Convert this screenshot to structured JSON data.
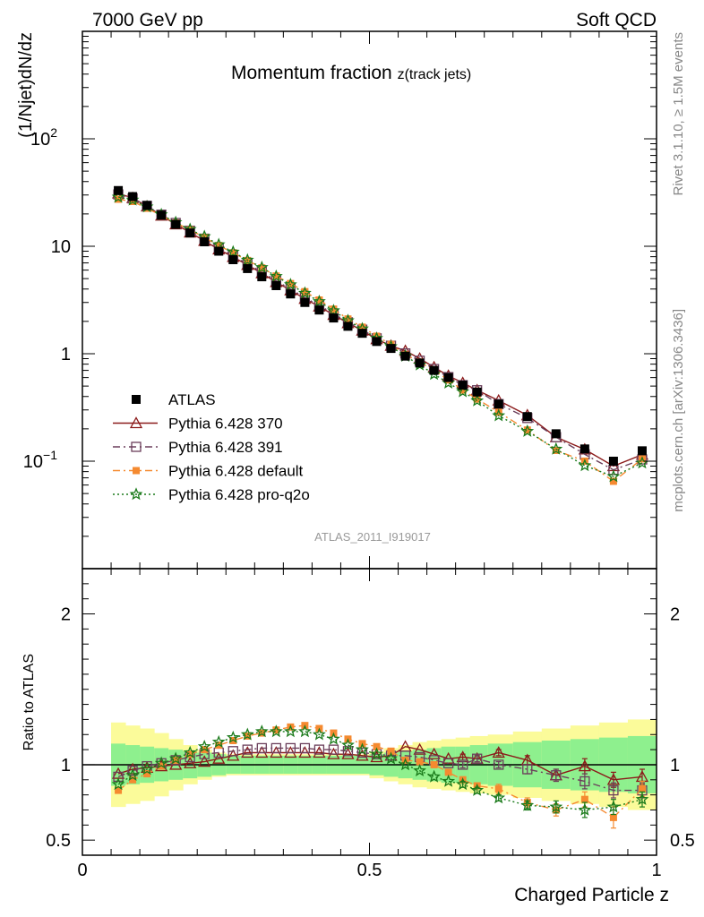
{
  "header": {
    "left": "7000 GeV pp",
    "right": "Soft QCD"
  },
  "side": {
    "rivet": "Rivet 3.1.10, ≥ 1.5M events",
    "site": "mcplots.cern.ch [arXiv:1306.3436]"
  },
  "chart_data": {
    "type": "line",
    "title_main": "Momentum fraction ",
    "title_sub": "z(track jets)",
    "analysis_label": "ATLAS_2011_I919017",
    "ylabel": "(1/Njet)dN/dz",
    "xlabel": "Charged Particle z",
    "ratio_ylabel": "Ratio to ATLAS",
    "xlim": [
      0,
      1
    ],
    "ylim_log": [
      0.01,
      1000
    ],
    "ratio_ylim": [
      0.4,
      2.3
    ],
    "y_scale": "log",
    "legend_position": "lower-left",
    "x_ticks": [
      "0",
      "0.5",
      "1"
    ],
    "y_ticks": [
      {
        "value": 0.1,
        "base": "10",
        "exp": "−1"
      },
      {
        "value": 1,
        "base": "1",
        "exp": ""
      },
      {
        "value": 10,
        "base": "10",
        "exp": ""
      },
      {
        "value": 100,
        "base": "10",
        "exp": "2"
      }
    ],
    "ratio_ticks": [
      "0.5",
      "1",
      "2"
    ],
    "x": [
      0.0625,
      0.0875,
      0.1125,
      0.1375,
      0.1625,
      0.1875,
      0.2125,
      0.2375,
      0.2625,
      0.2875,
      0.3125,
      0.3375,
      0.3625,
      0.3875,
      0.4125,
      0.4375,
      0.4625,
      0.4875,
      0.5125,
      0.5375,
      0.5625,
      0.5875,
      0.6125,
      0.6375,
      0.6625,
      0.6875,
      0.725,
      0.775,
      0.825,
      0.875,
      0.925,
      0.975
    ],
    "data": {
      "name": "ATLAS",
      "values": [
        33.0,
        29.0,
        24.0,
        19.5,
        16.0,
        13.3,
        11.0,
        9.0,
        7.5,
        6.2,
        5.2,
        4.3,
        3.6,
        3.0,
        2.55,
        2.15,
        1.8,
        1.55,
        1.3,
        1.12,
        0.95,
        0.82,
        0.7,
        0.6,
        0.51,
        0.44,
        0.34,
        0.26,
        0.18,
        0.13,
        0.1,
        0.125
      ],
      "band_inner": [
        0.14,
        0.13,
        0.12,
        0.11,
        0.1,
        0.09,
        0.08,
        0.07,
        0.06,
        0.06,
        0.06,
        0.06,
        0.06,
        0.06,
        0.06,
        0.06,
        0.06,
        0.06,
        0.07,
        0.08,
        0.09,
        0.1,
        0.11,
        0.12,
        0.12,
        0.13,
        0.14,
        0.15,
        0.16,
        0.17,
        0.18,
        0.19
      ],
      "band_outer": [
        0.28,
        0.26,
        0.24,
        0.21,
        0.17,
        0.13,
        0.1,
        0.08,
        0.07,
        0.07,
        0.07,
        0.07,
        0.07,
        0.07,
        0.07,
        0.07,
        0.07,
        0.07,
        0.09,
        0.11,
        0.13,
        0.15,
        0.16,
        0.17,
        0.18,
        0.19,
        0.2,
        0.22,
        0.24,
        0.26,
        0.28,
        0.3
      ]
    },
    "series": [
      {
        "name": "Pythia 6.428 370",
        "color": "#8b1a1a",
        "dash": "",
        "marker": "triangle",
        "ratio": [
          0.94,
          0.97,
          0.98,
          0.99,
          1.0,
          1.01,
          1.02,
          1.04,
          1.06,
          1.08,
          1.08,
          1.08,
          1.08,
          1.08,
          1.08,
          1.07,
          1.07,
          1.06,
          1.05,
          1.06,
          1.12,
          1.1,
          1.07,
          1.04,
          1.05,
          1.04,
          1.08,
          1.03,
          0.93,
          0.99,
          0.9,
          0.92
        ],
        "ratio_err": [
          0,
          0,
          0,
          0,
          0,
          0,
          0,
          0,
          0,
          0,
          0,
          0,
          0,
          0,
          0,
          0,
          0,
          0,
          0,
          0,
          0,
          0,
          0,
          0,
          0.02,
          0.02,
          0.02,
          0.03,
          0.04,
          0.05,
          0.05,
          0.05
        ]
      },
      {
        "name": "Pythia 6.428 391",
        "color": "#6b3f5b",
        "dash": "8,4,2,4",
        "marker": "square",
        "ratio": [
          0.92,
          0.96,
          0.99,
          1.01,
          1.03,
          1.05,
          1.07,
          1.08,
          1.09,
          1.1,
          1.11,
          1.11,
          1.11,
          1.11,
          1.1,
          1.1,
          1.09,
          1.08,
          1.07,
          1.06,
          1.06,
          1.05,
          1.03,
          1.01,
          1.0,
          1.04,
          1.0,
          0.97,
          0.93,
          0.89,
          0.83,
          0.83
        ],
        "ratio_err": [
          0,
          0,
          0,
          0,
          0,
          0,
          0,
          0,
          0,
          0,
          0,
          0,
          0,
          0,
          0,
          0,
          0,
          0,
          0,
          0,
          0,
          0,
          0,
          0,
          0.02,
          0.02,
          0.02,
          0.03,
          0.04,
          0.05,
          0.05,
          0.05
        ]
      },
      {
        "name": "Pythia 6.428 default",
        "color": "#f58a30",
        "dash": "8,4,2,4",
        "marker": "filledsquare",
        "ratio": [
          0.83,
          0.9,
          0.94,
          0.99,
          1.03,
          1.07,
          1.1,
          1.13,
          1.16,
          1.19,
          1.21,
          1.23,
          1.25,
          1.26,
          1.24,
          1.21,
          1.17,
          1.14,
          1.12,
          1.09,
          1.03,
          1.02,
          1.0,
          0.95,
          0.9,
          0.86,
          0.84,
          0.75,
          0.7,
          0.77,
          0.65,
          0.84
        ],
        "ratio_err": [
          0,
          0,
          0,
          0,
          0,
          0,
          0,
          0,
          0,
          0,
          0,
          0,
          0,
          0,
          0,
          0,
          0,
          0,
          0,
          0,
          0,
          0,
          0,
          0,
          0.02,
          0.02,
          0.03,
          0.03,
          0.04,
          0.05,
          0.07,
          0.05
        ]
      },
      {
        "name": "Pythia 6.428 pro-q2o",
        "color": "#1a7a1a",
        "dash": "2,3",
        "marker": "star",
        "ratio": [
          0.87,
          0.93,
          0.97,
          1.01,
          1.04,
          1.08,
          1.12,
          1.15,
          1.18,
          1.2,
          1.22,
          1.22,
          1.22,
          1.22,
          1.2,
          1.17,
          1.13,
          1.1,
          1.07,
          1.04,
          1.0,
          0.96,
          0.92,
          0.89,
          0.87,
          0.83,
          0.78,
          0.73,
          0.72,
          0.7,
          0.72,
          0.77
        ],
        "ratio_err": [
          0,
          0,
          0,
          0,
          0,
          0,
          0,
          0,
          0,
          0,
          0,
          0,
          0,
          0,
          0,
          0,
          0,
          0,
          0,
          0,
          0,
          0,
          0,
          0,
          0.02,
          0.02,
          0.02,
          0.03,
          0.04,
          0.05,
          0.05,
          0.05
        ]
      }
    ]
  }
}
